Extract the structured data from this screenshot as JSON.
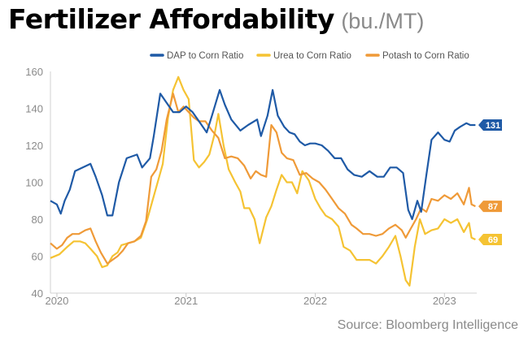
{
  "title": "Fertilizer Affordability",
  "title_unit": "(bu./MT)",
  "source": "Source: Bloomberg Intelligence",
  "chart_data": {
    "type": "line",
    "title": "Fertilizer Affordability",
    "ylim": [
      40,
      160
    ],
    "yticks": [
      40,
      60,
      80,
      100,
      120,
      140,
      160
    ],
    "xlim": [
      2019.95,
      2023.25
    ],
    "xticks": [
      {
        "value": 2020.0,
        "label": "2020"
      },
      {
        "value": 2021.0,
        "label": "2021"
      },
      {
        "value": 2022.0,
        "label": "2022"
      },
      {
        "value": 2023.0,
        "label": "2023"
      }
    ],
    "grid": false,
    "legend": "top-right",
    "series": [
      {
        "name": "DAP to Corn Ratio",
        "color": "#1f5aa6",
        "end_label": "131",
        "points": [
          [
            2019.95,
            90
          ],
          [
            2020.0,
            88
          ],
          [
            2020.03,
            83
          ],
          [
            2020.06,
            90
          ],
          [
            2020.1,
            96
          ],
          [
            2020.14,
            106
          ],
          [
            2020.2,
            108
          ],
          [
            2020.26,
            110
          ],
          [
            2020.3,
            103
          ],
          [
            2020.35,
            93
          ],
          [
            2020.39,
            82
          ],
          [
            2020.43,
            82
          ],
          [
            2020.48,
            100
          ],
          [
            2020.54,
            113
          ],
          [
            2020.62,
            115
          ],
          [
            2020.66,
            108
          ],
          [
            2020.72,
            113
          ],
          [
            2020.75,
            125
          ],
          [
            2020.8,
            148
          ],
          [
            2020.85,
            143
          ],
          [
            2020.9,
            138
          ],
          [
            2020.95,
            138
          ],
          [
            2021.0,
            141
          ],
          [
            2021.05,
            138
          ],
          [
            2021.1,
            133
          ],
          [
            2021.16,
            127
          ],
          [
            2021.2,
            136
          ],
          [
            2021.26,
            150
          ],
          [
            2021.3,
            142
          ],
          [
            2021.35,
            134
          ],
          [
            2021.42,
            128
          ],
          [
            2021.48,
            131
          ],
          [
            2021.55,
            134
          ],
          [
            2021.58,
            125
          ],
          [
            2021.63,
            136
          ],
          [
            2021.67,
            150
          ],
          [
            2021.71,
            136
          ],
          [
            2021.76,
            130
          ],
          [
            2021.8,
            127
          ],
          [
            2021.84,
            126
          ],
          [
            2021.88,
            122
          ],
          [
            2021.92,
            120
          ],
          [
            2021.96,
            121
          ],
          [
            2022.0,
            121
          ],
          [
            2022.05,
            120
          ],
          [
            2022.1,
            117
          ],
          [
            2022.15,
            113
          ],
          [
            2022.2,
            113
          ],
          [
            2022.25,
            107
          ],
          [
            2022.3,
            104
          ],
          [
            2022.36,
            103
          ],
          [
            2022.42,
            106
          ],
          [
            2022.48,
            103
          ],
          [
            2022.53,
            103
          ],
          [
            2022.58,
            108
          ],
          [
            2022.63,
            108
          ],
          [
            2022.68,
            105
          ],
          [
            2022.72,
            85
          ],
          [
            2022.75,
            80
          ],
          [
            2022.79,
            90
          ],
          [
            2022.82,
            84
          ],
          [
            2022.86,
            104
          ],
          [
            2022.9,
            123
          ],
          [
            2022.95,
            127
          ],
          [
            2023.0,
            123
          ],
          [
            2023.04,
            122
          ],
          [
            2023.08,
            128
          ],
          [
            2023.12,
            130
          ],
          [
            2023.17,
            132
          ],
          [
            2023.2,
            131
          ],
          [
            2023.24,
            131
          ]
        ]
      },
      {
        "name": "Urea to Corn Ratio",
        "color": "#f5c333",
        "end_label": "69",
        "points": [
          [
            2019.95,
            59
          ],
          [
            2020.02,
            61
          ],
          [
            2020.08,
            65
          ],
          [
            2020.13,
            68
          ],
          [
            2020.18,
            68
          ],
          [
            2020.22,
            67
          ],
          [
            2020.26,
            64
          ],
          [
            2020.31,
            60
          ],
          [
            2020.35,
            54
          ],
          [
            2020.39,
            55
          ],
          [
            2020.43,
            60
          ],
          [
            2020.47,
            62
          ],
          [
            2020.5,
            66
          ],
          [
            2020.55,
            67
          ],
          [
            2020.6,
            68
          ],
          [
            2020.65,
            70
          ],
          [
            2020.7,
            80
          ],
          [
            2020.74,
            90
          ],
          [
            2020.78,
            100
          ],
          [
            2020.82,
            110
          ],
          [
            2020.86,
            135
          ],
          [
            2020.9,
            150
          ],
          [
            2020.94,
            157
          ],
          [
            2020.98,
            150
          ],
          [
            2021.02,
            145
          ],
          [
            2021.06,
            112
          ],
          [
            2021.1,
            108
          ],
          [
            2021.14,
            111
          ],
          [
            2021.18,
            115
          ],
          [
            2021.22,
            126
          ],
          [
            2021.25,
            137
          ],
          [
            2021.29,
            120
          ],
          [
            2021.33,
            107
          ],
          [
            2021.38,
            100
          ],
          [
            2021.42,
            95
          ],
          [
            2021.45,
            86
          ],
          [
            2021.49,
            86
          ],
          [
            2021.53,
            80
          ],
          [
            2021.57,
            67
          ],
          [
            2021.62,
            81
          ],
          [
            2021.66,
            87
          ],
          [
            2021.7,
            96
          ],
          [
            2021.74,
            104
          ],
          [
            2021.78,
            100
          ],
          [
            2021.82,
            100
          ],
          [
            2021.86,
            94
          ],
          [
            2021.9,
            106
          ],
          [
            2021.95,
            101
          ],
          [
            2022.0,
            91
          ],
          [
            2022.04,
            86
          ],
          [
            2022.08,
            82
          ],
          [
            2022.13,
            80
          ],
          [
            2022.18,
            76
          ],
          [
            2022.22,
            65
          ],
          [
            2022.27,
            63
          ],
          [
            2022.32,
            58
          ],
          [
            2022.37,
            58
          ],
          [
            2022.42,
            58
          ],
          [
            2022.47,
            56
          ],
          [
            2022.52,
            60
          ],
          [
            2022.57,
            65
          ],
          [
            2022.62,
            71
          ],
          [
            2022.66,
            60
          ],
          [
            2022.7,
            47
          ],
          [
            2022.73,
            44
          ],
          [
            2022.77,
            65
          ],
          [
            2022.81,
            80
          ],
          [
            2022.85,
            72
          ],
          [
            2022.9,
            74
          ],
          [
            2022.95,
            75
          ],
          [
            2023.0,
            80
          ],
          [
            2023.05,
            78
          ],
          [
            2023.1,
            80
          ],
          [
            2023.15,
            73
          ],
          [
            2023.19,
            78
          ],
          [
            2023.21,
            70
          ],
          [
            2023.24,
            69
          ]
        ]
      },
      {
        "name": "Potash to Corn Ratio",
        "color": "#ef9a38",
        "end_label": "87",
        "points": [
          [
            2019.95,
            67
          ],
          [
            2020.0,
            64
          ],
          [
            2020.04,
            66
          ],
          [
            2020.08,
            70
          ],
          [
            2020.12,
            72
          ],
          [
            2020.17,
            72
          ],
          [
            2020.22,
            74
          ],
          [
            2020.26,
            75
          ],
          [
            2020.3,
            68
          ],
          [
            2020.34,
            62
          ],
          [
            2020.39,
            56
          ],
          [
            2020.43,
            58
          ],
          [
            2020.47,
            60
          ],
          [
            2020.51,
            63
          ],
          [
            2020.55,
            67
          ],
          [
            2020.6,
            68
          ],
          [
            2020.65,
            71
          ],
          [
            2020.69,
            79
          ],
          [
            2020.73,
            103
          ],
          [
            2020.77,
            107
          ],
          [
            2020.81,
            117
          ],
          [
            2020.85,
            134
          ],
          [
            2020.9,
            148
          ],
          [
            2020.94,
            138
          ],
          [
            2020.98,
            141
          ],
          [
            2021.02,
            138
          ],
          [
            2021.06,
            135
          ],
          [
            2021.1,
            133
          ],
          [
            2021.15,
            133
          ],
          [
            2021.2,
            128
          ],
          [
            2021.25,
            124
          ],
          [
            2021.3,
            113
          ],
          [
            2021.35,
            114
          ],
          [
            2021.4,
            113
          ],
          [
            2021.45,
            109
          ],
          [
            2021.5,
            102
          ],
          [
            2021.54,
            106
          ],
          [
            2021.58,
            104
          ],
          [
            2021.62,
            103
          ],
          [
            2021.66,
            131
          ],
          [
            2021.7,
            127
          ],
          [
            2021.74,
            116
          ],
          [
            2021.78,
            113
          ],
          [
            2021.83,
            112
          ],
          [
            2021.88,
            104
          ],
          [
            2021.93,
            105
          ],
          [
            2021.98,
            102
          ],
          [
            2022.03,
            100
          ],
          [
            2022.08,
            96
          ],
          [
            2022.13,
            91
          ],
          [
            2022.18,
            86
          ],
          [
            2022.23,
            83
          ],
          [
            2022.28,
            77
          ],
          [
            2022.32,
            75
          ],
          [
            2022.37,
            72
          ],
          [
            2022.42,
            72
          ],
          [
            2022.47,
            71
          ],
          [
            2022.52,
            72
          ],
          [
            2022.57,
            75
          ],
          [
            2022.62,
            77
          ],
          [
            2022.67,
            74
          ],
          [
            2022.7,
            70
          ],
          [
            2022.74,
            75
          ],
          [
            2022.78,
            80
          ],
          [
            2022.82,
            86
          ],
          [
            2022.86,
            84
          ],
          [
            2022.9,
            91
          ],
          [
            2022.95,
            90
          ],
          [
            2023.0,
            93
          ],
          [
            2023.05,
            91
          ],
          [
            2023.1,
            94
          ],
          [
            2023.15,
            88
          ],
          [
            2023.19,
            97
          ],
          [
            2023.21,
            88
          ],
          [
            2023.24,
            87
          ]
        ]
      }
    ]
  }
}
